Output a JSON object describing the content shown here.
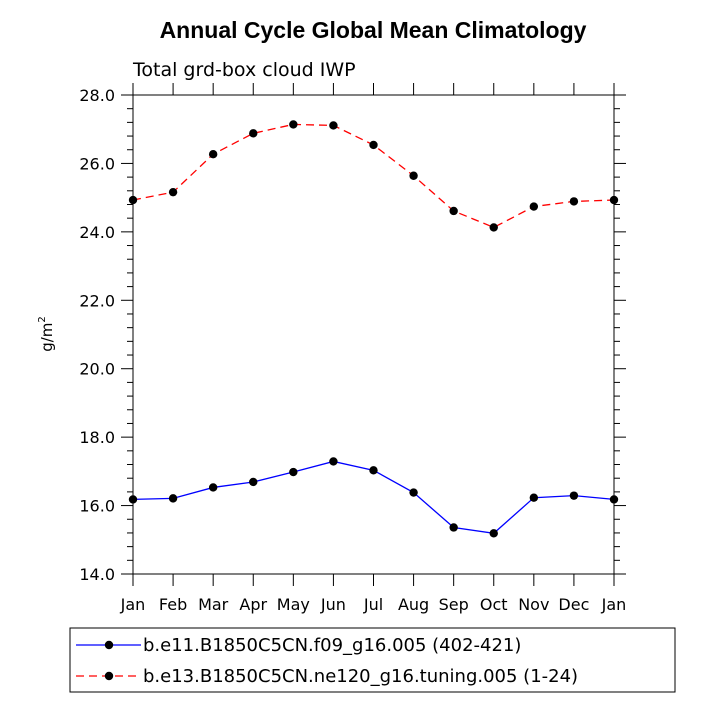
{
  "chart_data": {
    "type": "line",
    "title": "Annual Cycle Global Mean Climatology",
    "subtitle": "Total grd-box cloud IWP",
    "xlabel": "",
    "ylabel": "g/m",
    "ylabel_superscript": "2",
    "ylim": [
      14.0,
      28.0
    ],
    "yticks": [
      14.0,
      16.0,
      18.0,
      20.0,
      22.0,
      24.0,
      26.0,
      28.0
    ],
    "ytick_labels": [
      "14.0",
      "16.0",
      "18.0",
      "20.0",
      "22.0",
      "24.0",
      "26.0",
      "28.0"
    ],
    "categories": [
      "Jan",
      "Feb",
      "Mar",
      "Apr",
      "May",
      "Jun",
      "Jul",
      "Aug",
      "Sep",
      "Oct",
      "Nov",
      "Dec",
      "Jan"
    ],
    "grid": false,
    "legend_position": "bottom",
    "series": [
      {
        "name": "b.e11.B1850C5CN.f09_g16.005 (402-421)",
        "color": "#0000ff",
        "dash": "solid",
        "marker": "circle",
        "values": [
          16.18,
          16.21,
          16.53,
          16.69,
          16.98,
          17.29,
          17.03,
          16.38,
          15.36,
          15.19,
          16.23,
          16.29,
          16.18
        ]
      },
      {
        "name": "b.e13.B1850C5CN.ne120_g16.tuning.005 (1-24)",
        "color": "#ff0000",
        "dash": "dashed",
        "marker": "circle",
        "values": [
          24.93,
          25.16,
          26.27,
          26.88,
          27.14,
          27.11,
          26.54,
          25.64,
          24.61,
          24.13,
          24.74,
          24.89,
          24.93
        ]
      }
    ]
  }
}
